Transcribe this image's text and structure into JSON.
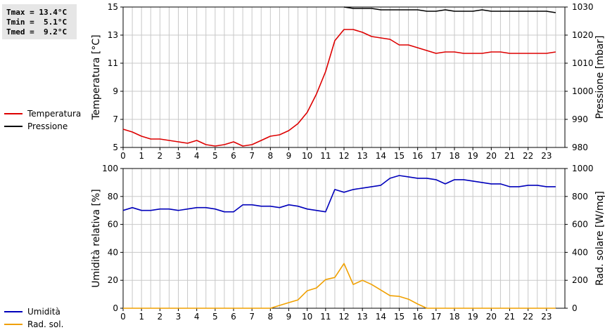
{
  "stats": {
    "tmax": "Tmax = 13.4°C",
    "tmin": "Tmin =  5.1°C",
    "tmed": "Tmed =  9.2°C"
  },
  "colors": {
    "temperature": "#dd0000",
    "pressure": "#000000",
    "humidity": "#0000bb",
    "solar": "#f0a000",
    "grid": "#c8c8c8"
  },
  "legends": {
    "top": [
      {
        "label": "Temperatura",
        "color": "#dd0000"
      },
      {
        "label": "Pressione",
        "color": "#000000"
      }
    ],
    "bottom": [
      {
        "label": "Umidità",
        "color": "#0000bb"
      },
      {
        "label": "Rad. sol.",
        "color": "#f0a000"
      }
    ]
  },
  "chart_data": [
    {
      "type": "line",
      "xlim": [
        0,
        24
      ],
      "x_ticks": [
        "0",
        "1",
        "2",
        "3",
        "4",
        "5",
        "6",
        "7",
        "8",
        "9",
        "10",
        "11",
        "12",
        "13",
        "14",
        "15",
        "16",
        "17",
        "18",
        "19",
        "20",
        "21",
        "22",
        "23"
      ],
      "ylabel_left": "Temperatura [°C]",
      "ylabel_right": "Pressione [mbar]",
      "ylim_left": [
        5,
        15
      ],
      "ylim_right": [
        980,
        1030
      ],
      "y_ticks_left": [
        "5",
        "7",
        "9",
        "11",
        "13",
        "15"
      ],
      "y_ticks_right": [
        "980",
        "990",
        "1000",
        "1010",
        "1020",
        "1030"
      ],
      "grid": true,
      "legend_position": "left",
      "series": [
        {
          "name": "Temperatura",
          "axis": "left",
          "color": "#dd0000",
          "x": [
            0,
            0.5,
            1,
            1.5,
            2,
            2.5,
            3,
            3.5,
            4,
            4.5,
            5,
            5.5,
            6,
            6.5,
            7,
            7.5,
            8,
            8.5,
            9,
            9.5,
            10,
            10.5,
            11,
            11.5,
            12,
            12.5,
            13,
            13.5,
            14,
            14.5,
            15,
            15.5,
            16,
            16.5,
            17,
            17.5,
            18,
            18.5,
            19,
            19.5,
            20,
            20.5,
            21,
            21.5,
            22,
            22.5,
            23,
            23.5
          ],
          "values": [
            6.3,
            6.1,
            5.8,
            5.6,
            5.6,
            5.5,
            5.4,
            5.3,
            5.5,
            5.2,
            5.1,
            5.2,
            5.4,
            5.1,
            5.2,
            5.5,
            5.8,
            5.9,
            6.2,
            6.7,
            7.5,
            8.8,
            10.4,
            12.6,
            13.4,
            13.4,
            13.2,
            12.9,
            12.8,
            12.7,
            12.3,
            12.3,
            12.1,
            11.9,
            11.7,
            11.8,
            11.8,
            11.7,
            11.7,
            11.7,
            11.8,
            11.8,
            11.7,
            11.7,
            11.7,
            11.7,
            11.7,
            11.8
          ]
        },
        {
          "name": "Pressione",
          "axis": "right",
          "color": "#000000",
          "x": [
            12,
            12.5,
            13,
            13.5,
            14,
            14.5,
            15,
            15.5,
            16,
            16.5,
            17,
            17.5,
            18,
            18.5,
            19,
            19.5,
            20,
            20.5,
            21,
            21.5,
            22,
            22.5,
            23,
            23.5
          ],
          "values": [
            1030,
            1029.5,
            1029.5,
            1029.5,
            1029,
            1029,
            1029,
            1029,
            1029,
            1028.5,
            1028.5,
            1029,
            1028.5,
            1028.5,
            1028.5,
            1029,
            1028.5,
            1028.5,
            1028.5,
            1028.5,
            1028.5,
            1028.5,
            1028.5,
            1028
          ]
        }
      ]
    },
    {
      "type": "line",
      "xlim": [
        0,
        24
      ],
      "x_ticks": [
        "0",
        "1",
        "2",
        "3",
        "4",
        "5",
        "6",
        "7",
        "8",
        "9",
        "10",
        "11",
        "12",
        "13",
        "14",
        "15",
        "16",
        "17",
        "18",
        "19",
        "20",
        "21",
        "22",
        "23"
      ],
      "ylabel_left": "Umidità relativa [%]",
      "ylabel_right": "Rad. solare [W/mq]",
      "ylim_left": [
        0,
        100
      ],
      "ylim_right": [
        0,
        1000
      ],
      "y_ticks_left": [
        "0",
        "20",
        "40",
        "60",
        "80",
        "100"
      ],
      "y_ticks_right": [
        "0",
        "200",
        "400",
        "600",
        "800",
        "1000"
      ],
      "grid": true,
      "legend_position": "left",
      "series": [
        {
          "name": "Umidità",
          "axis": "left",
          "color": "#0000bb",
          "x": [
            0,
            0.5,
            1,
            1.5,
            2,
            2.5,
            3,
            3.5,
            4,
            4.5,
            5,
            5.5,
            6,
            6.5,
            7,
            7.5,
            8,
            8.5,
            9,
            9.5,
            10,
            10.5,
            11,
            11.5,
            12,
            12.5,
            13,
            13.5,
            14,
            14.5,
            15,
            15.5,
            16,
            16.5,
            17,
            17.5,
            18,
            18.5,
            19,
            19.5,
            20,
            20.5,
            21,
            21.5,
            22,
            22.5,
            23,
            23.5
          ],
          "values": [
            70,
            72,
            70,
            70,
            71,
            71,
            70,
            71,
            72,
            72,
            71,
            69,
            69,
            74,
            74,
            73,
            73,
            72,
            74,
            73,
            71,
            70,
            69,
            85,
            83,
            85,
            86,
            87,
            88,
            93,
            95,
            94,
            93,
            93,
            92,
            89,
            92,
            92,
            91,
            90,
            89,
            89,
            87,
            87,
            88,
            88,
            87,
            87
          ]
        },
        {
          "name": "Rad. sol.",
          "axis": "right",
          "color": "#f0a000",
          "x": [
            0,
            0.5,
            1,
            1.5,
            2,
            2.5,
            3,
            3.5,
            4,
            4.5,
            5,
            5.5,
            6,
            6.5,
            7,
            7.5,
            8,
            8.5,
            9,
            9.5,
            10,
            10.5,
            11,
            11.5,
            12,
            12.5,
            13,
            13.5,
            14,
            14.5,
            15,
            15.5,
            16,
            16.5,
            17,
            17.5,
            18,
            18.5,
            19,
            19.5,
            20,
            20.5,
            21,
            21.5,
            22,
            22.5,
            23,
            23.5
          ],
          "values": [
            0,
            0,
            0,
            0,
            0,
            0,
            0,
            0,
            0,
            0,
            0,
            0,
            0,
            0,
            0,
            0,
            0,
            20,
            40,
            60,
            125,
            145,
            205,
            220,
            320,
            170,
            200,
            170,
            130,
            90,
            85,
            65,
            30,
            0,
            0,
            0,
            0,
            0,
            0,
            0,
            0,
            0,
            0,
            0,
            0,
            0,
            0,
            0
          ]
        }
      ]
    }
  ]
}
